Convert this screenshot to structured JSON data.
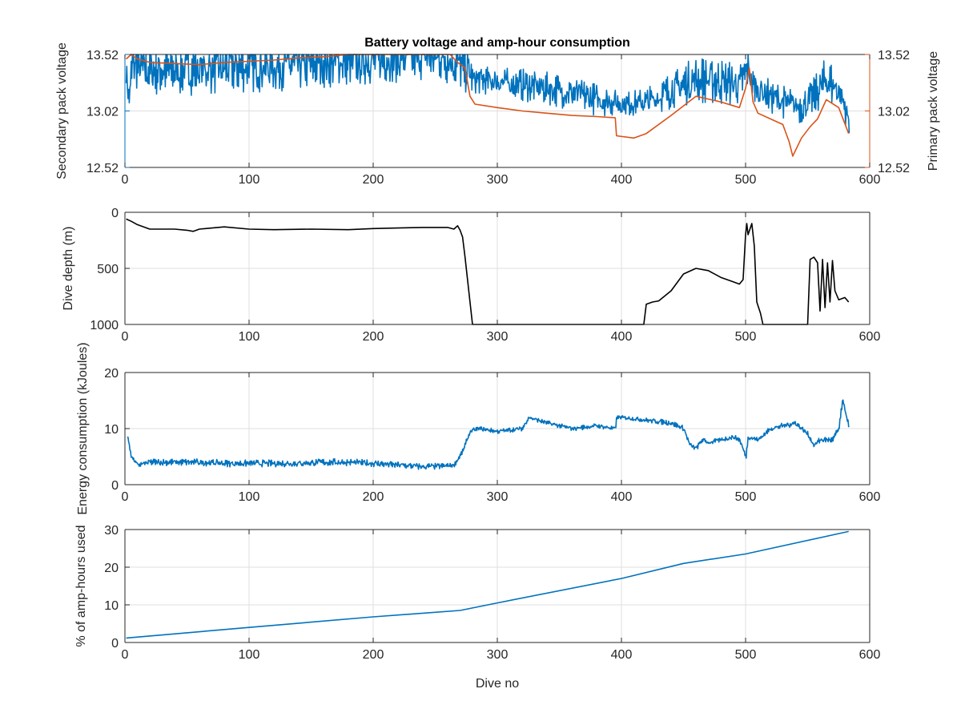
{
  "title": "Battery voltage and amp-hour consumption",
  "xlabel": "Dive no",
  "colors": {
    "blue": "#0072bd",
    "orange": "#d95319",
    "black": "#000000",
    "axis": "#262626",
    "grid": "#dfdfdf"
  },
  "chart_data": [
    {
      "type": "line",
      "title": "Battery voltage and amp-hour consumption",
      "xlabel": "",
      "ylabel": "Secondary pack voltage",
      "y2label": "Primary pack voltage",
      "xlim": [
        0,
        600
      ],
      "ylim": [
        12.52,
        13.52
      ],
      "xticks": [
        0,
        100,
        200,
        300,
        400,
        500,
        600
      ],
      "yticks": [
        12.52,
        13.02,
        13.52
      ],
      "ytick_labels": [
        "12.52",
        "13.02",
        "13.52"
      ],
      "grid": true,
      "series": [
        {
          "axis": "left",
          "color": "#0072bd",
          "noisy": true,
          "x": [
            1,
            3,
            6,
            10,
            20,
            40,
            60,
            80,
            100,
            120,
            140,
            160,
            180,
            200,
            220,
            240,
            255,
            265,
            272,
            278,
            280,
            300,
            320,
            340,
            360,
            380,
            395,
            400,
            420,
            440,
            460,
            480,
            495,
            502,
            505,
            520,
            535,
            545,
            555,
            565,
            575,
            580,
            583
          ],
          "y": [
            13.35,
            13.12,
            13.45,
            13.42,
            13.38,
            13.38,
            13.39,
            13.4,
            13.41,
            13.42,
            13.43,
            13.45,
            13.47,
            13.48,
            13.5,
            13.52,
            13.5,
            13.45,
            13.4,
            13.35,
            13.3,
            13.28,
            13.25,
            13.22,
            13.18,
            13.12,
            13.1,
            13.08,
            13.1,
            13.2,
            13.3,
            13.28,
            13.25,
            13.4,
            13.25,
            13.15,
            13.08,
            13.05,
            13.15,
            13.3,
            13.2,
            13.05,
            12.92
          ],
          "amp": [
            0.15,
            0.15,
            0.2,
            0.22,
            0.22,
            0.22,
            0.22,
            0.22,
            0.22,
            0.22,
            0.22,
            0.22,
            0.22,
            0.22,
            0.22,
            0.22,
            0.22,
            0.22,
            0.2,
            0.2,
            0.12,
            0.12,
            0.14,
            0.14,
            0.15,
            0.14,
            0.12,
            0.1,
            0.12,
            0.16,
            0.2,
            0.2,
            0.18,
            0.15,
            0.15,
            0.15,
            0.14,
            0.14,
            0.16,
            0.2,
            0.18,
            0.15,
            0.1
          ]
        },
        {
          "axis": "right",
          "color": "#d95319",
          "noisy": false,
          "x": [
            1,
            5,
            10,
            20,
            40,
            60,
            80,
            100,
            120,
            140,
            160,
            180,
            200,
            220,
            240,
            255,
            262,
            268,
            274,
            278,
            282,
            300,
            320,
            340,
            360,
            380,
            395,
            396,
            410,
            420,
            440,
            460,
            480,
            495,
            500,
            503,
            506,
            510,
            520,
            530,
            535,
            538,
            545,
            552,
            558,
            565,
            575,
            583
          ],
          "y": [
            13.48,
            13.55,
            13.48,
            13.45,
            13.44,
            13.43,
            13.45,
            13.46,
            13.47,
            13.49,
            13.5,
            13.52,
            13.53,
            13.55,
            13.58,
            13.55,
            13.55,
            13.45,
            13.4,
            13.15,
            13.08,
            13.05,
            13.02,
            13.0,
            12.98,
            12.97,
            12.96,
            12.8,
            12.78,
            12.82,
            12.98,
            13.15,
            13.1,
            13.05,
            13.22,
            13.4,
            13.1,
            13.0,
            12.95,
            12.9,
            12.75,
            12.62,
            12.78,
            12.88,
            12.95,
            13.12,
            13.05,
            12.82
          ]
        }
      ]
    },
    {
      "type": "line",
      "title": "",
      "xlabel": "",
      "ylabel": "Dive depth (m)",
      "xlim": [
        0,
        600
      ],
      "ylim": [
        0,
        1000
      ],
      "y_reversed": true,
      "xticks": [
        0,
        100,
        200,
        300,
        400,
        500,
        600
      ],
      "yticks": [
        0,
        500,
        1000
      ],
      "ytick_labels": [
        "0",
        "500",
        "1000"
      ],
      "grid": true,
      "series": [
        {
          "color": "#000000",
          "noisy": false,
          "x": [
            1,
            5,
            10,
            20,
            40,
            50,
            55,
            60,
            80,
            100,
            120,
            150,
            180,
            200,
            220,
            240,
            260,
            265,
            268,
            270,
            272,
            274,
            276,
            278,
            280,
            282,
            300,
            350,
            400,
            415,
            418,
            420,
            425,
            430,
            440,
            450,
            460,
            470,
            480,
            490,
            495,
            498,
            500,
            501,
            502,
            505,
            507,
            509,
            512,
            514,
            516,
            520,
            540,
            545,
            548,
            550,
            552,
            555,
            558,
            560,
            562,
            564,
            566,
            568,
            570,
            572,
            575,
            580,
            583
          ],
          "y": [
            60,
            80,
            110,
            150,
            150,
            160,
            170,
            150,
            130,
            150,
            155,
            150,
            155,
            145,
            140,
            135,
            135,
            150,
            120,
            160,
            220,
            400,
            600,
            800,
            1000,
            1000,
            1000,
            1000,
            1000,
            1000,
            1000,
            820,
            800,
            790,
            700,
            550,
            500,
            520,
            580,
            620,
            640,
            600,
            200,
            100,
            200,
            100,
            300,
            800,
            900,
            1000,
            1000,
            1000,
            1000,
            1000,
            1000,
            1000,
            420,
            400,
            450,
            880,
            420,
            850,
            450,
            800,
            430,
            700,
            780,
            760,
            800
          ]
        }
      ]
    },
    {
      "type": "line",
      "title": "",
      "xlabel": "",
      "ylabel": "Energy consumption (kJoules)",
      "xlim": [
        0,
        600
      ],
      "ylim": [
        0,
        20
      ],
      "xticks": [
        0,
        100,
        200,
        300,
        400,
        500,
        600
      ],
      "yticks": [
        0,
        10,
        20
      ],
      "ytick_labels": [
        "0",
        "10",
        "20"
      ],
      "grid": true,
      "series": [
        {
          "color": "#0072bd",
          "noisy": true,
          "x": [
            2,
            5,
            10,
            20,
            40,
            60,
            80,
            100,
            120,
            140,
            160,
            180,
            200,
            220,
            240,
            255,
            265,
            268,
            272,
            278,
            285,
            300,
            320,
            325,
            340,
            360,
            380,
            395,
            396,
            400,
            420,
            440,
            450,
            455,
            460,
            465,
            470,
            480,
            490,
            495,
            500,
            502,
            510,
            520,
            530,
            540,
            550,
            555,
            560,
            570,
            575,
            578,
            583
          ],
          "y": [
            8.5,
            5,
            3.5,
            4,
            4,
            4,
            3.8,
            3.8,
            3.8,
            3.8,
            4,
            4,
            3.8,
            3.5,
            3.2,
            3.3,
            3.5,
            4.5,
            6,
            9.5,
            10,
            9.5,
            10,
            12,
            11,
            10,
            10.5,
            10,
            12,
            12,
            11.5,
            11,
            10,
            7,
            6.5,
            8,
            7.5,
            8,
            8.5,
            8,
            5,
            8.5,
            8,
            10,
            10.5,
            11,
            9,
            7,
            8,
            8,
            10,
            15,
            10.5
          ],
          "amp": [
            0.2,
            0.3,
            0.4,
            0.6,
            0.6,
            0.6,
            0.6,
            0.6,
            0.6,
            0.6,
            0.6,
            0.6,
            0.6,
            0.6,
            0.6,
            0.5,
            0.3,
            0.3,
            0.3,
            0.4,
            0.4,
            0.4,
            0.4,
            0.4,
            0.4,
            0.4,
            0.4,
            0.4,
            0.3,
            0.3,
            0.4,
            0.5,
            0.5,
            0.5,
            0.4,
            0.4,
            0.4,
            0.4,
            0.4,
            0.5,
            0.5,
            0.4,
            0.4,
            0.4,
            0.5,
            0.5,
            0.5,
            0.5,
            0.5,
            0.5,
            0.5,
            0.3,
            0.3
          ]
        }
      ]
    },
    {
      "type": "line",
      "title": "",
      "xlabel": "Dive no",
      "ylabel": "% of amp-hours used",
      "xlim": [
        0,
        600
      ],
      "ylim": [
        0,
        30
      ],
      "xticks": [
        0,
        100,
        200,
        300,
        400,
        500,
        600
      ],
      "yticks": [
        0,
        10,
        20,
        30
      ],
      "ytick_labels": [
        "0",
        "10",
        "20",
        "30"
      ],
      "grid": true,
      "series": [
        {
          "color": "#0072bd",
          "noisy": false,
          "x": [
            1,
            100,
            200,
            270,
            300,
            400,
            450,
            500,
            583
          ],
          "y": [
            1.2,
            4,
            6.8,
            8.5,
            10.5,
            17,
            21,
            23.5,
            29.5
          ]
        }
      ]
    }
  ]
}
